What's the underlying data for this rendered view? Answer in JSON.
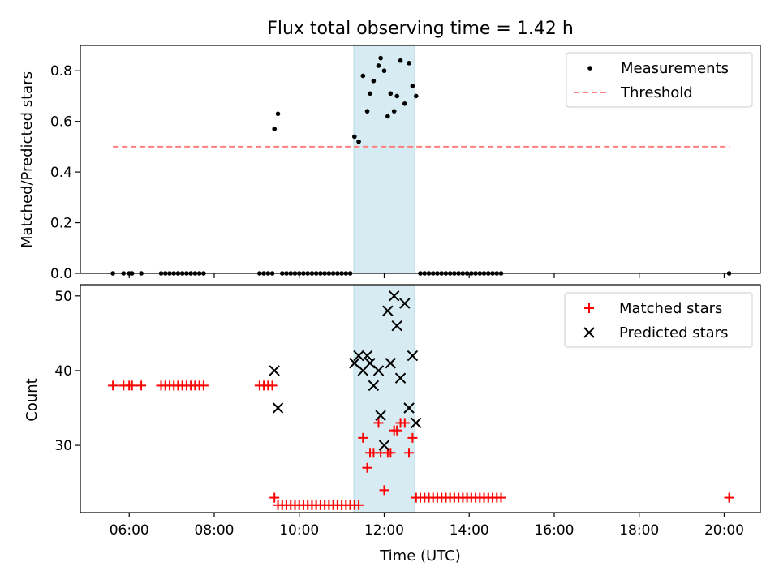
{
  "chart_data": [
    {
      "type": "scatter",
      "title": "Flux total observing time = 1.42 h",
      "xlabel": "",
      "ylabel": "Matched/Predicted stars",
      "xlim": [
        "04:51",
        "20:51"
      ],
      "ylim": [
        0,
        0.9
      ],
      "yticks": [
        "0.0",
        "0.2",
        "0.4",
        "0.6",
        "0.8"
      ],
      "grid": false,
      "legend_position": "top-right",
      "highlight_span": {
        "start": "11:17",
        "end": "12:43",
        "color": "#add8e6"
      },
      "series": [
        {
          "name": "Measurements",
          "marker": "dot",
          "color": "#000000",
          "points": [
            [
              "05:37",
              0
            ],
            [
              "05:52",
              0
            ],
            [
              "06:00",
              0
            ],
            [
              "06:04",
              0
            ],
            [
              "06:17",
              0
            ],
            [
              "06:45",
              0
            ],
            [
              "06:51",
              0
            ],
            [
              "06:57",
              0
            ],
            [
              "07:03",
              0
            ],
            [
              "07:09",
              0
            ],
            [
              "07:15",
              0
            ],
            [
              "07:21",
              0
            ],
            [
              "07:27",
              0
            ],
            [
              "07:33",
              0
            ],
            [
              "07:39",
              0
            ],
            [
              "07:45",
              0
            ],
            [
              "09:04",
              0
            ],
            [
              "09:10",
              0
            ],
            [
              "09:16",
              0
            ],
            [
              "09:22",
              0
            ],
            [
              "09:25",
              0.57
            ],
            [
              "09:30",
              0.63
            ],
            [
              "09:36",
              0
            ],
            [
              "09:42",
              0
            ],
            [
              "09:48",
              0
            ],
            [
              "09:54",
              0
            ],
            [
              "10:00",
              0
            ],
            [
              "10:06",
              0
            ],
            [
              "10:12",
              0
            ],
            [
              "10:18",
              0
            ],
            [
              "10:24",
              0
            ],
            [
              "10:30",
              0
            ],
            [
              "10:36",
              0
            ],
            [
              "10:42",
              0
            ],
            [
              "10:48",
              0
            ],
            [
              "10:54",
              0
            ],
            [
              "11:00",
              0
            ],
            [
              "11:06",
              0
            ],
            [
              "11:12",
              0
            ],
            [
              "11:18",
              0.54
            ],
            [
              "11:24",
              0.52
            ],
            [
              "11:30",
              0.78
            ],
            [
              "11:36",
              0.64
            ],
            [
              "11:40",
              0.71
            ],
            [
              "11:45",
              0.76
            ],
            [
              "11:52",
              0.82
            ],
            [
              "11:55",
              0.85
            ],
            [
              "12:00",
              0.8
            ],
            [
              "12:05",
              0.62
            ],
            [
              "12:09",
              0.71
            ],
            [
              "12:14",
              0.64
            ],
            [
              "12:18",
              0.7
            ],
            [
              "12:23",
              0.84
            ],
            [
              "12:29",
              0.67
            ],
            [
              "12:35",
              0.83
            ],
            [
              "12:40",
              0.74
            ],
            [
              "12:45",
              0.7
            ],
            [
              "12:51",
              0
            ],
            [
              "12:57",
              0
            ],
            [
              "13:03",
              0
            ],
            [
              "13:09",
              0
            ],
            [
              "13:15",
              0
            ],
            [
              "13:21",
              0
            ],
            [
              "13:27",
              0
            ],
            [
              "13:33",
              0
            ],
            [
              "13:39",
              0
            ],
            [
              "13:45",
              0
            ],
            [
              "13:51",
              0
            ],
            [
              "13:57",
              0
            ],
            [
              "14:03",
              0
            ],
            [
              "14:09",
              0
            ],
            [
              "14:15",
              0
            ],
            [
              "14:21",
              0
            ],
            [
              "14:27",
              0
            ],
            [
              "14:33",
              0
            ],
            [
              "14:39",
              0
            ],
            [
              "14:45",
              0
            ],
            [
              "20:07",
              0
            ]
          ]
        },
        {
          "name": "Threshold",
          "marker": "dashed-line",
          "color": "#ff7f7f",
          "points": [
            [
              "05:37",
              0.5
            ],
            [
              "20:07",
              0.5
            ]
          ]
        }
      ]
    },
    {
      "type": "scatter",
      "title": "",
      "xlabel": "Time (UTC)",
      "ylabel": "Count",
      "xlim": [
        "04:51",
        "20:51"
      ],
      "xticks": [
        "06:00",
        "08:00",
        "10:00",
        "12:00",
        "14:00",
        "16:00",
        "18:00",
        "20:00"
      ],
      "ylim": [
        21,
        51.5
      ],
      "yticks": [
        "30",
        "40",
        "50"
      ],
      "grid": false,
      "legend_position": "top-right",
      "highlight_span": {
        "start": "11:17",
        "end": "12:43",
        "color": "#add8e6"
      },
      "series": [
        {
          "name": "Matched stars",
          "marker": "plus",
          "color": "#ff0000",
          "points": [
            [
              "05:37",
              38
            ],
            [
              "05:52",
              38
            ],
            [
              "06:00",
              38
            ],
            [
              "06:04",
              38
            ],
            [
              "06:17",
              38
            ],
            [
              "06:45",
              38
            ],
            [
              "06:51",
              38
            ],
            [
              "06:57",
              38
            ],
            [
              "07:03",
              38
            ],
            [
              "07:09",
              38
            ],
            [
              "07:15",
              38
            ],
            [
              "07:21",
              38
            ],
            [
              "07:27",
              38
            ],
            [
              "07:33",
              38
            ],
            [
              "07:39",
              38
            ],
            [
              "07:45",
              38
            ],
            [
              "09:04",
              38
            ],
            [
              "09:10",
              38
            ],
            [
              "09:16",
              38
            ],
            [
              "09:22",
              38
            ],
            [
              "09:25",
              23
            ],
            [
              "09:30",
              22
            ],
            [
              "09:36",
              22
            ],
            [
              "09:42",
              22
            ],
            [
              "09:48",
              22
            ],
            [
              "09:54",
              22
            ],
            [
              "10:00",
              22
            ],
            [
              "10:06",
              22
            ],
            [
              "10:12",
              22
            ],
            [
              "10:18",
              22
            ],
            [
              "10:24",
              22
            ],
            [
              "10:30",
              22
            ],
            [
              "10:36",
              22
            ],
            [
              "10:42",
              22
            ],
            [
              "10:48",
              22
            ],
            [
              "10:54",
              22
            ],
            [
              "11:00",
              22
            ],
            [
              "11:06",
              22
            ],
            [
              "11:12",
              22
            ],
            [
              "11:18",
              22
            ],
            [
              "11:24",
              22
            ],
            [
              "11:30",
              31
            ],
            [
              "11:36",
              27
            ],
            [
              "11:40",
              29
            ],
            [
              "11:45",
              29
            ],
            [
              "11:52",
              33
            ],
            [
              "11:55",
              29
            ],
            [
              "12:00",
              24
            ],
            [
              "12:05",
              29
            ],
            [
              "12:09",
              29
            ],
            [
              "12:14",
              32
            ],
            [
              "12:18",
              32
            ],
            [
              "12:23",
              33
            ],
            [
              "12:29",
              33
            ],
            [
              "12:35",
              29
            ],
            [
              "12:40",
              31
            ],
            [
              "12:45",
              23
            ],
            [
              "12:51",
              23
            ],
            [
              "12:57",
              23
            ],
            [
              "13:03",
              23
            ],
            [
              "13:09",
              23
            ],
            [
              "13:15",
              23
            ],
            [
              "13:21",
              23
            ],
            [
              "13:27",
              23
            ],
            [
              "13:33",
              23
            ],
            [
              "13:39",
              23
            ],
            [
              "13:45",
              23
            ],
            [
              "13:51",
              23
            ],
            [
              "13:57",
              23
            ],
            [
              "14:03",
              23
            ],
            [
              "14:09",
              23
            ],
            [
              "14:15",
              23
            ],
            [
              "14:21",
              23
            ],
            [
              "14:27",
              23
            ],
            [
              "14:33",
              23
            ],
            [
              "14:39",
              23
            ],
            [
              "14:45",
              23
            ],
            [
              "20:07",
              23
            ]
          ]
        },
        {
          "name": "Predicted stars",
          "marker": "x",
          "color": "#000000",
          "points": [
            [
              "09:25",
              40
            ],
            [
              "09:30",
              35
            ],
            [
              "11:18",
              41
            ],
            [
              "11:24",
              42
            ],
            [
              "11:30",
              40
            ],
            [
              "11:36",
              42
            ],
            [
              "11:40",
              41
            ],
            [
              "11:45",
              38
            ],
            [
              "11:52",
              40
            ],
            [
              "11:55",
              34
            ],
            [
              "12:00",
              30
            ],
            [
              "12:05",
              48
            ],
            [
              "12:09",
              41
            ],
            [
              "12:14",
              50
            ],
            [
              "12:18",
              46
            ],
            [
              "12:23",
              39
            ],
            [
              "12:29",
              49
            ],
            [
              "12:35",
              35
            ],
            [
              "12:40",
              42
            ],
            [
              "12:45",
              33
            ]
          ]
        }
      ]
    }
  ]
}
